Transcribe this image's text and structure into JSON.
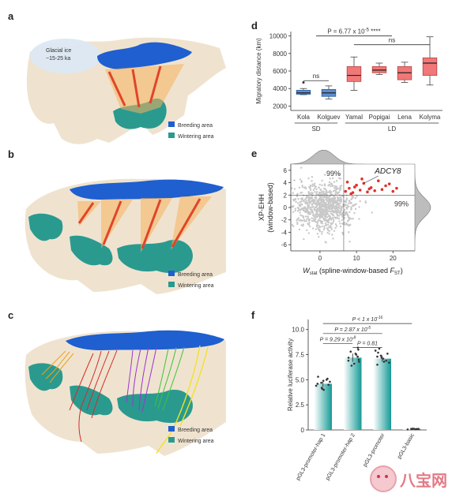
{
  "panels": {
    "a": {
      "label": "a",
      "annotation_line1": "Glacial ice",
      "annotation_line2": "~15-25 ka",
      "legend": [
        "Breeding area",
        "Wintering area"
      ]
    },
    "b": {
      "label": "b",
      "legend": [
        "Breeding area",
        "Wintering area"
      ]
    },
    "c": {
      "label": "c",
      "legend": [
        "Breeding area",
        "Wintering area"
      ]
    },
    "d": {
      "label": "d"
    },
    "e": {
      "label": "e"
    },
    "f": {
      "label": "f"
    }
  },
  "colors": {
    "breeding": "#1f5fcf",
    "wintering": "#2a9a8f",
    "land": "#efe3cf",
    "sea": "#ffffff",
    "boxfill": "#f07878",
    "boxsd": "#5b8ecf",
    "red": "#e0312a",
    "gray": "#c8c8c8",
    "teal": "#159a96"
  },
  "chart_data": [
    {
      "panel": "d",
      "type": "box",
      "ylabel": "Migratory distance (km)",
      "yticks": [
        2000,
        4000,
        6000,
        8000,
        10000
      ],
      "ylim": [
        1500,
        10500
      ],
      "categories": [
        "Kola",
        "Kolguev",
        "Yamal",
        "Popigai",
        "Lena",
        "Kolyma"
      ],
      "groups": [
        {
          "name": "SD",
          "members": [
            "Kola",
            "Kolguev"
          ]
        },
        {
          "name": "LD",
          "members": [
            "Yamal",
            "Popigai",
            "Lena",
            "Kolyma"
          ]
        }
      ],
      "boxes": [
        {
          "cat": "Kola",
          "min": 3300,
          "q1": 3350,
          "median": 3500,
          "q3": 3800,
          "max": 4000,
          "outliers": [
            4700
          ],
          "group": "SD"
        },
        {
          "cat": "Kolguev",
          "min": 2800,
          "q1": 3100,
          "median": 3500,
          "q3": 3900,
          "max": 4300,
          "outliers": [],
          "group": "SD"
        },
        {
          "cat": "Yamal",
          "min": 3800,
          "q1": 4800,
          "median": 5500,
          "q3": 6500,
          "max": 7600,
          "outliers": [],
          "group": "LD"
        },
        {
          "cat": "Popigai",
          "min": 5600,
          "q1": 5800,
          "median": 6100,
          "q3": 6500,
          "max": 6900,
          "outliers": [],
          "group": "LD"
        },
        {
          "cat": "Lena",
          "min": 4700,
          "q1": 5000,
          "median": 5800,
          "q3": 6500,
          "max": 7000,
          "outliers": [],
          "group": "LD"
        },
        {
          "cat": "Kolyma",
          "min": 4400,
          "q1": 5500,
          "median": 6900,
          "q3": 7500,
          "max": 9900,
          "outliers": [],
          "group": "LD"
        }
      ],
      "annotations": {
        "ns1": "ns",
        "top_p": "P = 6.77 x 10",
        "top_p_exp": "-5",
        "top_stars": "****",
        "ns2": "ns"
      }
    },
    {
      "panel": "e",
      "type": "scatter",
      "xlabel_pre": "W",
      "xlabel_sub": "stat",
      "xlabel_mid": " (spline-window-based ",
      "xlabel_f": "F",
      "xlabel_fsub": "ST",
      "xlabel_post": ")",
      "ylabel_line1": "XP-EHH",
      "ylabel_line2": "(window-based)",
      "xticks": [
        0,
        10,
        20
      ],
      "yticks": [
        -6,
        -4,
        -2,
        0,
        2,
        4,
        6
      ],
      "xlim": [
        -8,
        26
      ],
      "ylim": [
        -7,
        7
      ],
      "threshold_x": 6.5,
      "threshold_y": 2,
      "label_99_top": "99%",
      "label_99_right": "99%",
      "gene": "ADCY8",
      "highlight_points": [
        [
          7,
          2.6
        ],
        [
          8,
          3.1
        ],
        [
          9,
          2.4
        ],
        [
          10,
          3.6
        ],
        [
          11,
          2.8
        ],
        [
          12,
          3.9
        ],
        [
          13,
          2.5
        ],
        [
          14,
          3.2
        ],
        [
          15,
          2.7
        ],
        [
          16,
          4.3
        ],
        [
          17,
          2.9
        ],
        [
          18,
          3.5
        ],
        [
          20,
          2.6
        ],
        [
          21,
          3.1
        ],
        [
          7.5,
          4.1
        ],
        [
          9.5,
          3.3
        ],
        [
          11.5,
          4.6
        ],
        [
          13.5,
          3.0
        ],
        [
          19,
          3.8
        ],
        [
          8.5,
          2.2
        ]
      ]
    },
    {
      "panel": "f",
      "type": "bar",
      "ylabel": "Relative luciferase activity",
      "yticks": [
        0,
        2.5,
        5.0,
        7.5,
        10.0
      ],
      "ylim": [
        0,
        11
      ],
      "categories": [
        "pGL3-promoter-hap 1",
        "pGL3-promoter-hap 2",
        "pGL3-promoter",
        "pGL3-basic"
      ],
      "values": [
        4.6,
        7.2,
        7.1,
        0.1
      ],
      "errors": [
        0.3,
        0.4,
        0.3,
        0.05
      ],
      "significance": [
        {
          "from": 0,
          "to": 1,
          "label_pre": "P = 9.29 x 10",
          "label_exp": "-8"
        },
        {
          "from": 1,
          "to": 2,
          "label_pre": "P = 0.81",
          "label_exp": ""
        },
        {
          "from": 0,
          "to": 2,
          "label_pre": "P = 2.87 x 10",
          "label_exp": "-5"
        },
        {
          "from": 0,
          "to": 3,
          "label_pre": "P < 1 x 10",
          "label_exp": "-16"
        }
      ],
      "points": [
        [
          4.2,
          4.5,
          4.9,
          5.1,
          4.0,
          4.7,
          4.4,
          5.3,
          4.8,
          4.1,
          4.6,
          5.0
        ],
        [
          7.0,
          7.5,
          8.2,
          6.6,
          7.3,
          6.9,
          8.0,
          7.8,
          6.4,
          7.2,
          7.6,
          6.8
        ],
        [
          7.2,
          6.8,
          7.7,
          7.4,
          6.5,
          7.9,
          6.9,
          7.1,
          7.6,
          6.7,
          8.1,
          7.3
        ],
        [
          0.1,
          0.08,
          0.12,
          0.05,
          0.1,
          0.09,
          0.11,
          0.07
        ]
      ]
    }
  ],
  "watermark": {
    "text": "八宝网"
  }
}
